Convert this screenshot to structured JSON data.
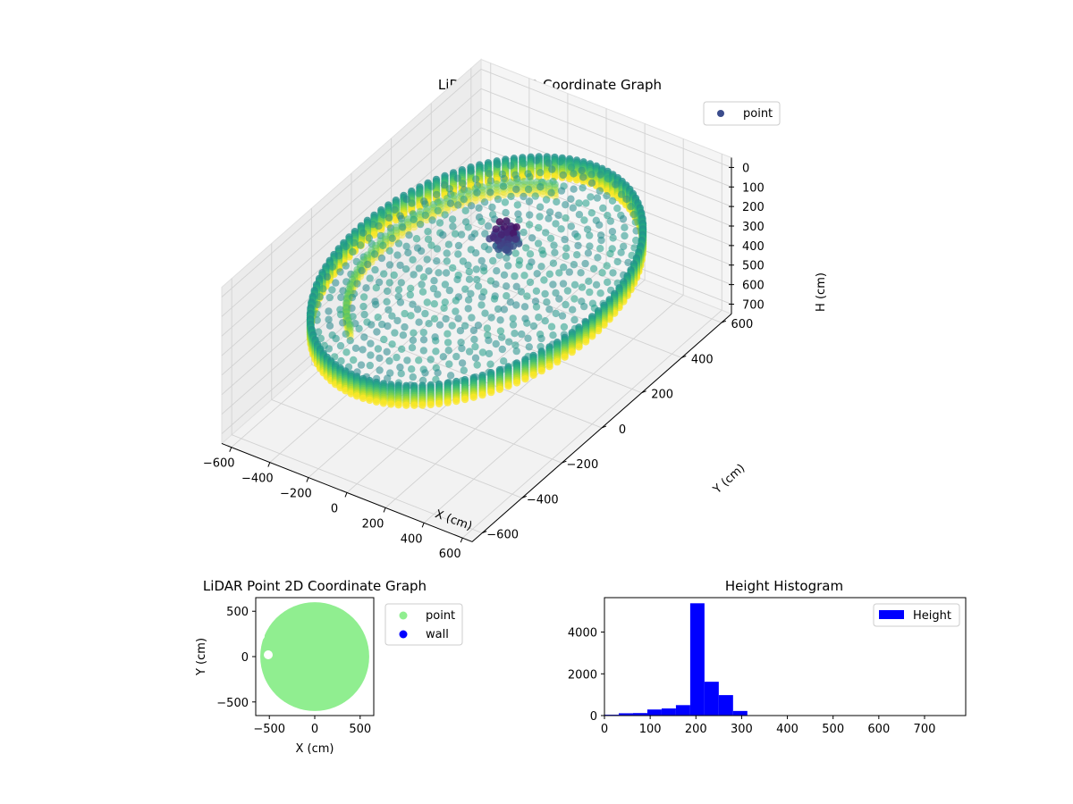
{
  "chart_data": [
    {
      "type": "scatter",
      "projection": "3d",
      "title": "LiDAR Point 3D Coordinate Graph",
      "xlabel": "X (cm)",
      "ylabel": "Y (cm)",
      "zlabel": "H (cm)",
      "xticks": [
        -600,
        -400,
        -200,
        0,
        200,
        400,
        600
      ],
      "yticks": [
        -600,
        -400,
        -200,
        0,
        200,
        400,
        600
      ],
      "zticks": [
        0,
        100,
        200,
        300,
        400,
        500,
        600,
        700
      ],
      "xlim": [
        -650,
        650
      ],
      "ylim": [
        -650,
        650
      ],
      "zlim": [
        0,
        750
      ],
      "z_inverted": true,
      "grid": true,
      "colormap": "viridis",
      "legend": {
        "position": "top-right",
        "entries": [
          {
            "label": "point",
            "color": "#3b4c8c"
          }
        ]
      },
      "wall_radius": 600,
      "wall_height_range": [
        200,
        300
      ],
      "floor_height": 210,
      "cluster": {
        "x": 0,
        "y": 150,
        "h": [
          100,
          200
        ]
      }
    },
    {
      "type": "scatter",
      "title": "LiDAR Point 2D Coordinate Graph",
      "xlabel": "X (cm)",
      "ylabel": "Y (cm)",
      "xticks": [
        -500,
        0,
        500
      ],
      "yticks": [
        -500,
        0,
        500
      ],
      "xlim": [
        -650,
        650
      ],
      "ylim": [
        -650,
        650
      ],
      "legend": {
        "position": "outside-right",
        "entries": [
          {
            "label": "point",
            "color": "#90ee90"
          },
          {
            "label": "wall",
            "color": "#0000ff"
          }
        ]
      },
      "disc": {
        "cx": 0,
        "cy": 0,
        "r": 600,
        "color": "#90ee90"
      }
    },
    {
      "type": "bar",
      "subtype": "histogram",
      "title": "Height Histogram",
      "xticks": [
        0,
        100,
        200,
        300,
        400,
        500,
        600,
        700
      ],
      "yticks": [
        0,
        2000,
        4000
      ],
      "xlim": [
        0,
        790
      ],
      "ylim": [
        0,
        5650
      ],
      "color": "#0000ff",
      "legend": {
        "position": "top-right",
        "entries": [
          {
            "label": "Height",
            "color": "#0000ff"
          }
        ]
      },
      "bin_edges": [
        0,
        31.25,
        62.5,
        93.75,
        125,
        156.25,
        187.5,
        218.75,
        250,
        281.25,
        312.5,
        343.75,
        375,
        406.25,
        437.5,
        468.75,
        500,
        531.25,
        562.5,
        593.75,
        625,
        656.25,
        687.5,
        718.75,
        750
      ],
      "counts": [
        40,
        110,
        120,
        290,
        340,
        500,
        5380,
        1620,
        980,
        220,
        10,
        5,
        5,
        3,
        3,
        3,
        3,
        3,
        3,
        3,
        3,
        3,
        3,
        3
      ]
    }
  ]
}
